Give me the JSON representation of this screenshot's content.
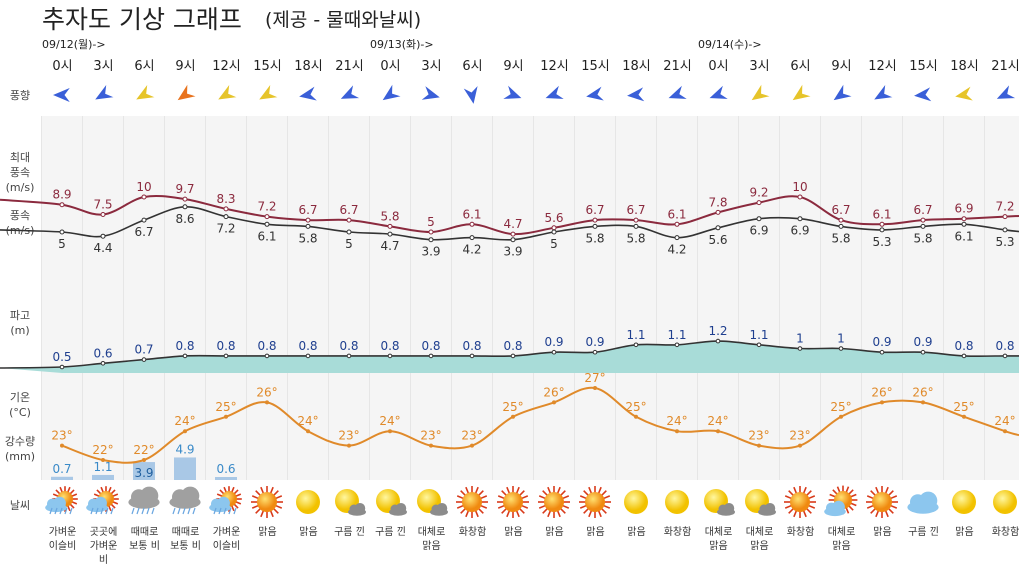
{
  "header": {
    "title": "추자도 기상 그래프",
    "subtitle": "(제공 - 물때와날씨)"
  },
  "dates": [
    {
      "label": "09/12(월)->",
      "col": 0
    },
    {
      "label": "09/13(화)->",
      "col": 8
    },
    {
      "label": "09/14(수)->",
      "col": 16
    }
  ],
  "hours": [
    "0시",
    "3시",
    "6시",
    "9시",
    "12시",
    "15시",
    "18시",
    "21시",
    "0시",
    "3시",
    "6시",
    "9시",
    "12시",
    "15시",
    "18시",
    "21시",
    "0시",
    "3시",
    "6시",
    "9시",
    "12시",
    "15시",
    "18시",
    "21시"
  ],
  "row_labels": {
    "wind_dir": "풍향",
    "max_wind": [
      "최대",
      "풍속",
      "(m/s)"
    ],
    "wind": [
      "풍속",
      "(m/s)"
    ],
    "wave": [
      "파고",
      "(m)"
    ],
    "temp": [
      "기온",
      "(°C)"
    ],
    "rain": [
      "강수량",
      "(mm)"
    ],
    "weather": "날씨"
  },
  "colors": {
    "max_wind": "#8b2a3e",
    "wind": "#333333",
    "wave_fill": "#a8dcd8",
    "wave_line": "#333333",
    "temp": "#e08a2a",
    "rain": "#a9c8e6",
    "rain_text": "#3a8ac8",
    "wind_blue": "#3a5fd8",
    "wind_yellow": "#e6c42a",
    "wind_orange": "#e8731e",
    "grid_bg": "#f5f5f5"
  },
  "wind_dir": [
    {
      "deg": 180,
      "color": "blue"
    },
    {
      "deg": 150,
      "color": "blue"
    },
    {
      "deg": 150,
      "color": "yellow"
    },
    {
      "deg": 145,
      "color": "orange"
    },
    {
      "deg": 150,
      "color": "yellow"
    },
    {
      "deg": 150,
      "color": "yellow"
    },
    {
      "deg": 170,
      "color": "blue"
    },
    {
      "deg": 155,
      "color": "blue"
    },
    {
      "deg": 145,
      "color": "blue"
    },
    {
      "deg": 15,
      "color": "blue"
    },
    {
      "deg": 80,
      "color": "blue"
    },
    {
      "deg": 20,
      "color": "blue"
    },
    {
      "deg": 160,
      "color": "blue"
    },
    {
      "deg": 170,
      "color": "blue"
    },
    {
      "deg": 175,
      "color": "blue"
    },
    {
      "deg": 160,
      "color": "blue"
    },
    {
      "deg": 160,
      "color": "blue"
    },
    {
      "deg": 145,
      "color": "yellow"
    },
    {
      "deg": 145,
      "color": "yellow"
    },
    {
      "deg": 145,
      "color": "blue"
    },
    {
      "deg": 150,
      "color": "blue"
    },
    {
      "deg": 175,
      "color": "blue"
    },
    {
      "deg": 170,
      "color": "yellow"
    },
    {
      "deg": 155,
      "color": "blue"
    }
  ],
  "max_wind": [
    "8.9",
    "7.5",
    "10",
    "9.7",
    "8.3",
    "7.2",
    "6.7",
    "6.7",
    "5.8",
    "5",
    "6.1",
    "4.7",
    "5.6",
    "6.7",
    "6.7",
    "6.1",
    "7.8",
    "9.2",
    "10",
    "6.7",
    "6.1",
    "6.7",
    "6.9",
    "7.2"
  ],
  "wind": [
    "5",
    "4.4",
    "6.7",
    "8.6",
    "7.2",
    "6.1",
    "5.8",
    "5",
    "4.7",
    "3.9",
    "4.2",
    "3.9",
    "5",
    "5.8",
    "5.8",
    "4.2",
    "5.6",
    "6.9",
    "6.9",
    "5.8",
    "5.3",
    "5.8",
    "6.1",
    "5.3"
  ],
  "wave": [
    "0.5",
    "0.6",
    "0.7",
    "0.8",
    "0.8",
    "0.8",
    "0.8",
    "0.8",
    "0.8",
    "0.8",
    "0.8",
    "0.8",
    "0.9",
    "0.9",
    "1.1",
    "1.1",
    "1.2",
    "1.1",
    "1",
    "1",
    "0.9",
    "0.9",
    "0.8",
    "0.8"
  ],
  "temp": [
    23,
    22,
    22,
    24,
    25,
    26,
    24,
    23,
    24,
    23,
    23,
    25,
    26,
    27,
    25,
    24,
    24,
    23,
    23,
    25,
    26,
    26,
    25,
    24
  ],
  "temp_unit": "°",
  "rain": [
    "0.7",
    "1.1",
    "3.9",
    "4.9",
    "0.6",
    "",
    "",
    "",
    "",
    "",
    "",
    "",
    "",
    "",
    "",
    "",
    "",
    "",
    "",
    "",
    "",
    "",
    "",
    ""
  ],
  "weather": [
    {
      "icon": "sun-rain",
      "label": [
        "가벼운",
        "이슬비"
      ]
    },
    {
      "icon": "sun-rain",
      "label": [
        "곳곳에",
        "가벼운",
        "비"
      ]
    },
    {
      "icon": "rain-cloud",
      "label": [
        "때때로",
        "보통 비"
      ]
    },
    {
      "icon": "rain-cloud",
      "label": [
        "때때로",
        "보통 비"
      ]
    },
    {
      "icon": "sun-rain",
      "label": [
        "가벼운",
        "이슬비"
      ]
    },
    {
      "icon": "sun-rays",
      "label": [
        "맑음"
      ]
    },
    {
      "icon": "sun",
      "label": [
        "맑음"
      ]
    },
    {
      "icon": "sun-cloud",
      "label": [
        "구름 낀"
      ]
    },
    {
      "icon": "sun-cloud",
      "label": [
        "구름 낀"
      ]
    },
    {
      "icon": "sun-cloud",
      "label": [
        "대체로",
        "맑음"
      ]
    },
    {
      "icon": "sun-rays",
      "label": [
        "화창함"
      ]
    },
    {
      "icon": "sun-rays",
      "label": [
        "맑음"
      ]
    },
    {
      "icon": "sun-rays",
      "label": [
        "맑음"
      ]
    },
    {
      "icon": "sun-rays",
      "label": [
        "맑음"
      ]
    },
    {
      "icon": "sun",
      "label": [
        "맑음"
      ]
    },
    {
      "icon": "sun",
      "label": [
        "화창함"
      ]
    },
    {
      "icon": "sun-cloud",
      "label": [
        "대체로",
        "맑음"
      ]
    },
    {
      "icon": "sun-cloud",
      "label": [
        "대체로",
        "맑음"
      ]
    },
    {
      "icon": "sun-rays",
      "label": [
        "화창함"
      ]
    },
    {
      "icon": "sun-rays-cloud",
      "label": [
        "대체로",
        "맑음"
      ]
    },
    {
      "icon": "sun-rays",
      "label": [
        "맑음"
      ]
    },
    {
      "icon": "cloud",
      "label": [
        "구름 낀"
      ]
    },
    {
      "icon": "sun",
      "label": [
        "맑음"
      ]
    },
    {
      "icon": "sun",
      "label": [
        "화창함"
      ]
    }
  ]
}
